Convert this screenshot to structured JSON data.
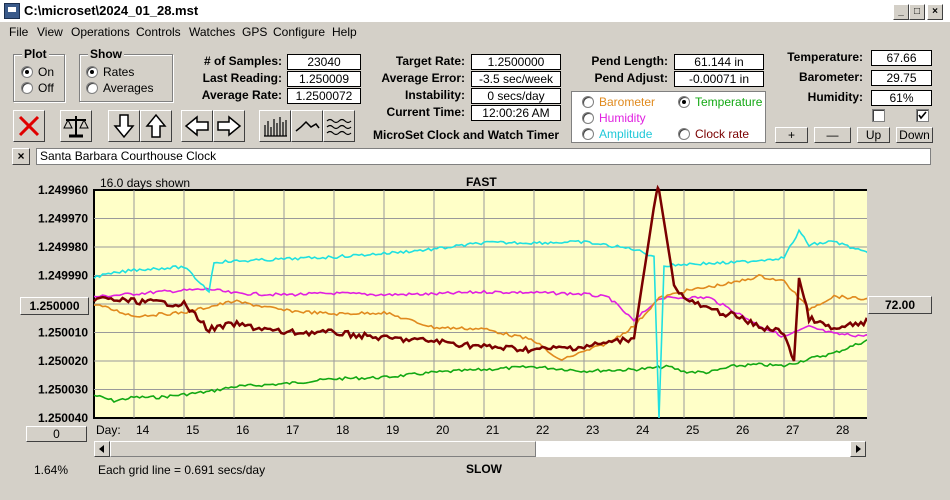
{
  "window": {
    "title": "C:\\microset\\2024_01_28.mst",
    "minimize": "_",
    "maximize": "□",
    "close": "×"
  },
  "menu": [
    "File",
    "View",
    "Operations",
    "Controls",
    "Watches",
    "GPS",
    "Configure",
    "Help"
  ],
  "plot_group": {
    "title": "Plot",
    "on": "On",
    "off": "Off",
    "selected": "On"
  },
  "show_group": {
    "title": "Show",
    "rates": "Rates",
    "averages": "Averages",
    "selected": "Rates"
  },
  "stats": {
    "samples_label": "# of Samples:",
    "samples": "23040",
    "last_reading_label": "Last Reading:",
    "last_reading": "1.250009",
    "average_rate_label": "Average Rate:",
    "average_rate": "1.2500072",
    "target_rate_label": "Target Rate:",
    "target_rate": "1.2500000",
    "average_error_label": "Average Error:",
    "average_error": "-3.5 sec/week",
    "instability_label": "Instability:",
    "instability": "0 secs/day",
    "current_time_label": "Current Time:",
    "current_time": "12:00:26 AM",
    "pend_length_label": "Pend Length:",
    "pend_length": "61.144 in",
    "pend_adjust_label": "Pend Adjust:",
    "pend_adjust": "-0.00071 in",
    "temperature_label": "Temperature:",
    "temperature": "67.66",
    "barometer_label": "Barometer:",
    "barometer": "29.75",
    "humidity_label": "Humidity:",
    "humidity": "61%"
  },
  "subtitle": "MicroSet Clock and Watch Timer",
  "aux_options": {
    "barometer": "Barometer",
    "temperature": "Temperature",
    "humidity": "Humidity",
    "amplitude": "Amplitude",
    "clock_rate": "Clock rate",
    "selected": "Temperature"
  },
  "sensor_buttons": {
    "plus": "+",
    "minus": "—",
    "up": "Up",
    "down": "Down"
  },
  "clock_name": "Santa Barbara Courthouse Clock",
  "clear_button": "×",
  "colors": {
    "barometer": "#e08a1e",
    "temperature": "#13a813",
    "humidity": "#e020e0",
    "amplitude": "#20e0e0",
    "rate": "#7a0000",
    "plot_bg": "#ffffc8"
  },
  "chart": {
    "days_shown": "16.0 days shown",
    "fast_label": "FAST",
    "slow_label": "SLOW",
    "grid_note": "Each grid line = 0.691 secs/day",
    "zoom": "1.64%",
    "left_button": "1.250000",
    "right_button": "72.00",
    "scroll_button": "0",
    "day_label": "Day:"
  },
  "chart_data": {
    "type": "line",
    "x_label": "Day:",
    "x_ticks": [
      "14",
      "15",
      "16",
      "17",
      "18",
      "19",
      "20",
      "21",
      "22",
      "23",
      "24",
      "25",
      "26",
      "27",
      "28"
    ],
    "xlim": [
      13.2,
      28.8
    ],
    "y_left_ticks": [
      "1.249960",
      "1.249970",
      "1.249980",
      "1.249990",
      "1.250000",
      "1.250010",
      "1.250020",
      "1.250030",
      "1.250040"
    ],
    "y_left_range": [
      1.24996,
      1.25004
    ],
    "y_right_ticks": [
      "88.00",
      "84.00",
      "80.00",
      "76.00",
      "72.00",
      "68.00",
      "64.00",
      "60.00",
      "56.00"
    ],
    "y_right_range": [
      56,
      88
    ],
    "series": [
      {
        "name": "Temperature",
        "axis": "right",
        "color": "#13a813",
        "x": [
          13.2,
          13.6,
          14.0,
          14.5,
          15.0,
          15.5,
          16.0,
          17.0,
          18.0,
          19.0,
          20.0,
          21.0,
          22.0,
          23.0,
          24.0,
          24.7,
          25.0,
          25.5,
          26.0,
          26.5,
          27.0,
          27.5,
          28.0,
          28.7
        ],
        "y": [
          59.2,
          58.4,
          58.9,
          58.9,
          59.3,
          59.7,
          60.4,
          60.8,
          61.5,
          61.7,
          62.4,
          62.8,
          63.2,
          62.6,
          62.8,
          63.2,
          62.5,
          62.4,
          63.3,
          63.5,
          63.3,
          64.3,
          65.1,
          67.0
        ]
      },
      {
        "name": "Humidity",
        "axis": "right",
        "color": "#e020e0",
        "x": [
          13.2,
          14.5,
          15.5,
          16.0,
          17.0,
          18.0,
          19.0,
          20.0,
          21.0,
          22.0,
          23.0,
          23.5,
          24.0,
          24.5,
          25.0,
          25.5,
          26.0,
          26.5,
          27.0,
          27.5,
          28.0,
          28.7
        ],
        "y": [
          73.0,
          73.7,
          74.1,
          73.5,
          73.3,
          73.5,
          73.3,
          73.4,
          73.7,
          73.6,
          73.4,
          72.9,
          69.6,
          72.8,
          72.9,
          72.9,
          71.0,
          69.0,
          67.4,
          68.8,
          67.8,
          67.5
        ]
      },
      {
        "name": "Barometer",
        "axis": "right",
        "color": "#e08a1e",
        "x": [
          13.2,
          14.0,
          15.0,
          16.0,
          17.0,
          18.0,
          19.0,
          20.0,
          21.0,
          22.0,
          22.5,
          23.0,
          23.5,
          24.0,
          24.5,
          25.0,
          26.0,
          26.5,
          27.0,
          27.5,
          28.0,
          28.7
        ],
        "y": [
          72.0,
          70.3,
          70.8,
          72.4,
          71.1,
          70.6,
          70.8,
          68.7,
          68.5,
          66.9,
          64.1,
          65.3,
          66.6,
          68.9,
          72.8,
          73.8,
          75.0,
          75.9,
          75.2,
          71.3,
          73.1,
          72.6
        ]
      },
      {
        "name": "Amplitude",
        "axis": "right",
        "color": "#20e0e0",
        "x": [
          13.2,
          14.0,
          15.0,
          15.5,
          15.6,
          16.0,
          17.0,
          18.0,
          19.0,
          20.0,
          21.0,
          22.0,
          23.0,
          24.0,
          24.4,
          24.5,
          24.6,
          25.0,
          26.0,
          27.0,
          27.3,
          27.5,
          28.0,
          28.7
        ],
        "y": [
          75.8,
          76.8,
          77.2,
          73.8,
          77.9,
          78.0,
          78.3,
          78.6,
          79.1,
          79.7,
          80.6,
          80.6,
          80.7,
          79.7,
          78.7,
          56.0,
          77.3,
          77.6,
          77.8,
          78.5,
          82.2,
          80.3,
          80.8,
          79.0
        ]
      },
      {
        "name": "Rate",
        "axis": "left",
        "color": "#7a0000",
        "x": [
          13.2,
          14.0,
          15.0,
          15.5,
          16.0,
          17.0,
          18.0,
          19.0,
          20.0,
          21.0,
          22.0,
          23.0,
          24.0,
          24.45,
          24.5,
          24.8,
          25.0,
          25.5,
          26.0,
          26.5,
          27.0,
          27.2,
          27.3,
          27.5,
          28.0,
          28.7
        ],
        "y": [
          1.249998,
          1.249999,
          1.25,
          1.250009,
          1.250007,
          1.25001,
          1.25001,
          1.250012,
          1.250013,
          1.250015,
          1.250016,
          1.250015,
          1.250012,
          1.24996,
          1.24996,
          1.249993,
          1.249998,
          1.250002,
          1.250004,
          1.250008,
          1.25001,
          1.25002,
          1.249991,
          1.250005,
          1.250009,
          1.250006
        ]
      }
    ]
  }
}
